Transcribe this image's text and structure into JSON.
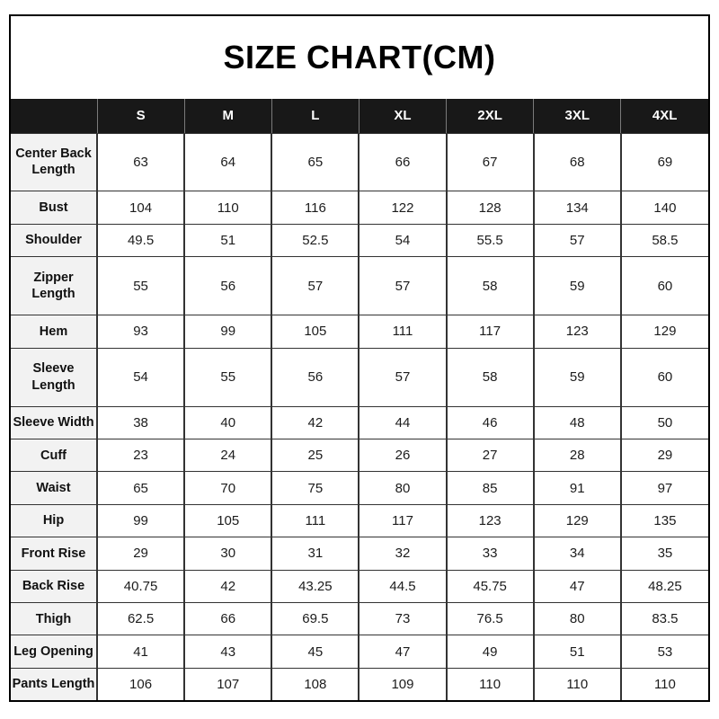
{
  "title": "SIZE CHART(CM)",
  "colors": {
    "header_bg": "#181818",
    "header_text": "#ffffff",
    "label_bg": "#f2f2f2",
    "grid": "#333333",
    "border_outer": "#000000"
  },
  "chart_data": {
    "type": "table",
    "title": "SIZE CHART(CM)",
    "unit": "CM",
    "corner_label": "",
    "columns": [
      "S",
      "M",
      "L",
      "XL",
      "2XL",
      "3XL",
      "4XL"
    ],
    "rows": [
      {
        "label": "Center Back\nLength",
        "name": "center-back-length",
        "values": [
          "63",
          "64",
          "65",
          "66",
          "67",
          "68",
          "69"
        ]
      },
      {
        "label": "Bust",
        "name": "bust",
        "values": [
          "104",
          "110",
          "116",
          "122",
          "128",
          "134",
          "140"
        ]
      },
      {
        "label": "Shoulder",
        "name": "shoulder",
        "values": [
          "49.5",
          "51",
          "52.5",
          "54",
          "55.5",
          "57",
          "58.5"
        ]
      },
      {
        "label": "Zipper Length",
        "name": "zipper-length",
        "values": [
          "55",
          "56",
          "57",
          "57",
          "58",
          "59",
          "60"
        ]
      },
      {
        "label": "Hem",
        "name": "hem",
        "values": [
          "93",
          "99",
          "105",
          "111",
          "117",
          "123",
          "129"
        ]
      },
      {
        "label": "Sleeve\nLength",
        "name": "sleeve-length",
        "values": [
          "54",
          "55",
          "56",
          "57",
          "58",
          "59",
          "60"
        ]
      },
      {
        "label": "Sleeve Width",
        "name": "sleeve-width",
        "values": [
          "38",
          "40",
          "42",
          "44",
          "46",
          "48",
          "50"
        ]
      },
      {
        "label": "Cuff",
        "name": "cuff",
        "values": [
          "23",
          "24",
          "25",
          "26",
          "27",
          "28",
          "29"
        ]
      },
      {
        "label": "Waist",
        "name": "waist",
        "values": [
          "65",
          "70",
          "75",
          "80",
          "85",
          "91",
          "97"
        ]
      },
      {
        "label": "Hip",
        "name": "hip",
        "values": [
          "99",
          "105",
          "111",
          "117",
          "123",
          "129",
          "135"
        ]
      },
      {
        "label": "Front Rise",
        "name": "front-rise",
        "values": [
          "29",
          "30",
          "31",
          "32",
          "33",
          "34",
          "35"
        ]
      },
      {
        "label": "Back Rise",
        "name": "back-rise",
        "values": [
          "40.75",
          "42",
          "43.25",
          "44.5",
          "45.75",
          "47",
          "48.25"
        ]
      },
      {
        "label": "Thigh",
        "name": "thigh",
        "values": [
          "62.5",
          "66",
          "69.5",
          "73",
          "76.5",
          "80",
          "83.5"
        ]
      },
      {
        "label": "Leg Opening",
        "name": "leg-opening",
        "values": [
          "41",
          "43",
          "45",
          "47",
          "49",
          "51",
          "53"
        ]
      },
      {
        "label": "Pants Length",
        "name": "pants-length",
        "values": [
          "106",
          "107",
          "108",
          "109",
          "110",
          "110",
          "110"
        ]
      }
    ]
  }
}
